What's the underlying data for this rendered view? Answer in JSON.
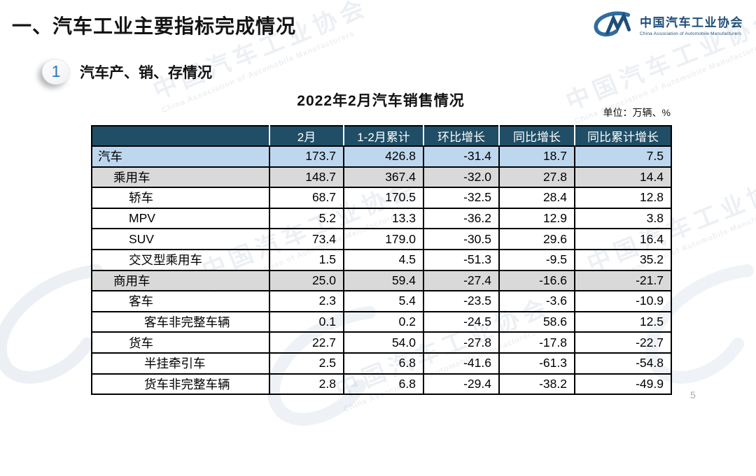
{
  "page": {
    "title": "一、汽车工业主要指标完成情况",
    "page_number": "5"
  },
  "logo": {
    "cn": "中国汽车工业协会",
    "en": "China Association of Automobile Manufacturers"
  },
  "section": {
    "badge": "1",
    "title": "汽车产、销、存情况"
  },
  "table": {
    "title": "2022年2月汽车销售情况",
    "unit_note": "单位：万辆、%",
    "columns": [
      "",
      "2月",
      "1-2月累计",
      "环比增长",
      "同比增长",
      "同比累计增长"
    ],
    "rows": [
      {
        "label": "汽车",
        "indent": 0,
        "bg": "blue",
        "values": [
          "173.7",
          "426.8",
          "-31.4",
          "18.7",
          "7.5"
        ]
      },
      {
        "label": "乘用车",
        "indent": 1,
        "bg": "gray",
        "values": [
          "148.7",
          "367.4",
          "-32.0",
          "27.8",
          "14.4"
        ]
      },
      {
        "label": "轿车",
        "indent": 2,
        "bg": "white",
        "values": [
          "68.7",
          "170.5",
          "-32.5",
          "28.4",
          "12.8"
        ]
      },
      {
        "label": "MPV",
        "indent": 2,
        "bg": "white",
        "values": [
          "5.2",
          "13.3",
          "-36.2",
          "12.9",
          "3.8"
        ]
      },
      {
        "label": "SUV",
        "indent": 2,
        "bg": "white",
        "values": [
          "73.4",
          "179.0",
          "-30.5",
          "29.6",
          "16.4"
        ]
      },
      {
        "label": "交叉型乘用车",
        "indent": 2,
        "bg": "white",
        "values": [
          "1.5",
          "4.5",
          "-51.3",
          "-9.5",
          "35.2"
        ]
      },
      {
        "label": "商用车",
        "indent": 1,
        "bg": "gray",
        "values": [
          "25.0",
          "59.4",
          "-27.4",
          "-16.6",
          "-21.7"
        ]
      },
      {
        "label": "客车",
        "indent": 2,
        "bg": "white",
        "values": [
          "2.3",
          "5.4",
          "-23.5",
          "-3.6",
          "-10.9"
        ]
      },
      {
        "label": "客车非完整车辆",
        "indent": 3,
        "bg": "white",
        "values": [
          "0.1",
          "0.2",
          "-24.5",
          "58.6",
          "12.5"
        ]
      },
      {
        "label": "货车",
        "indent": 2,
        "bg": "white",
        "values": [
          "22.7",
          "54.0",
          "-27.8",
          "-17.8",
          "-22.7"
        ]
      },
      {
        "label": "半挂牵引车",
        "indent": 3,
        "bg": "white",
        "values": [
          "2.5",
          "6.8",
          "-41.6",
          "-61.3",
          "-54.8"
        ]
      },
      {
        "label": "货车非完整车辆",
        "indent": 3,
        "bg": "white",
        "values": [
          "2.8",
          "6.8",
          "-29.4",
          "-38.2",
          "-49.9"
        ]
      }
    ]
  },
  "watermark": {
    "cn": "中国汽车工业协会",
    "en": "China Association of Automobile Manufacturers"
  },
  "colors": {
    "header_bg": "#1F4E66",
    "row_blue": "#BDD7EE",
    "row_gray": "#D9D9D9",
    "brand": "#1F4E79",
    "badge_num": "#2E74B5"
  },
  "chart_data": {
    "type": "table",
    "title": "2022年2月汽车销售情况",
    "unit": "万辆、%",
    "columns": [
      "",
      "2月",
      "1-2月累计",
      "环比增长",
      "同比增长",
      "同比累计增长"
    ],
    "rows": [
      [
        "汽车",
        173.7,
        426.8,
        -31.4,
        18.7,
        7.5
      ],
      [
        "乘用车",
        148.7,
        367.4,
        -32.0,
        27.8,
        14.4
      ],
      [
        "轿车",
        68.7,
        170.5,
        -32.5,
        28.4,
        12.8
      ],
      [
        "MPV",
        5.2,
        13.3,
        -36.2,
        12.9,
        3.8
      ],
      [
        "SUV",
        73.4,
        179.0,
        -30.5,
        29.6,
        16.4
      ],
      [
        "交叉型乘用车",
        1.5,
        4.5,
        -51.3,
        -9.5,
        35.2
      ],
      [
        "商用车",
        25.0,
        59.4,
        -27.4,
        -16.6,
        -21.7
      ],
      [
        "客车",
        2.3,
        5.4,
        -23.5,
        -3.6,
        -10.9
      ],
      [
        "客车非完整车辆",
        0.1,
        0.2,
        -24.5,
        58.6,
        12.5
      ],
      [
        "货车",
        22.7,
        54.0,
        -27.8,
        -17.8,
        -22.7
      ],
      [
        "半挂牵引车",
        2.5,
        6.8,
        -41.6,
        -61.3,
        -54.8
      ],
      [
        "货车非完整车辆",
        2.8,
        6.8,
        -29.4,
        -38.2,
        -49.9
      ]
    ]
  }
}
